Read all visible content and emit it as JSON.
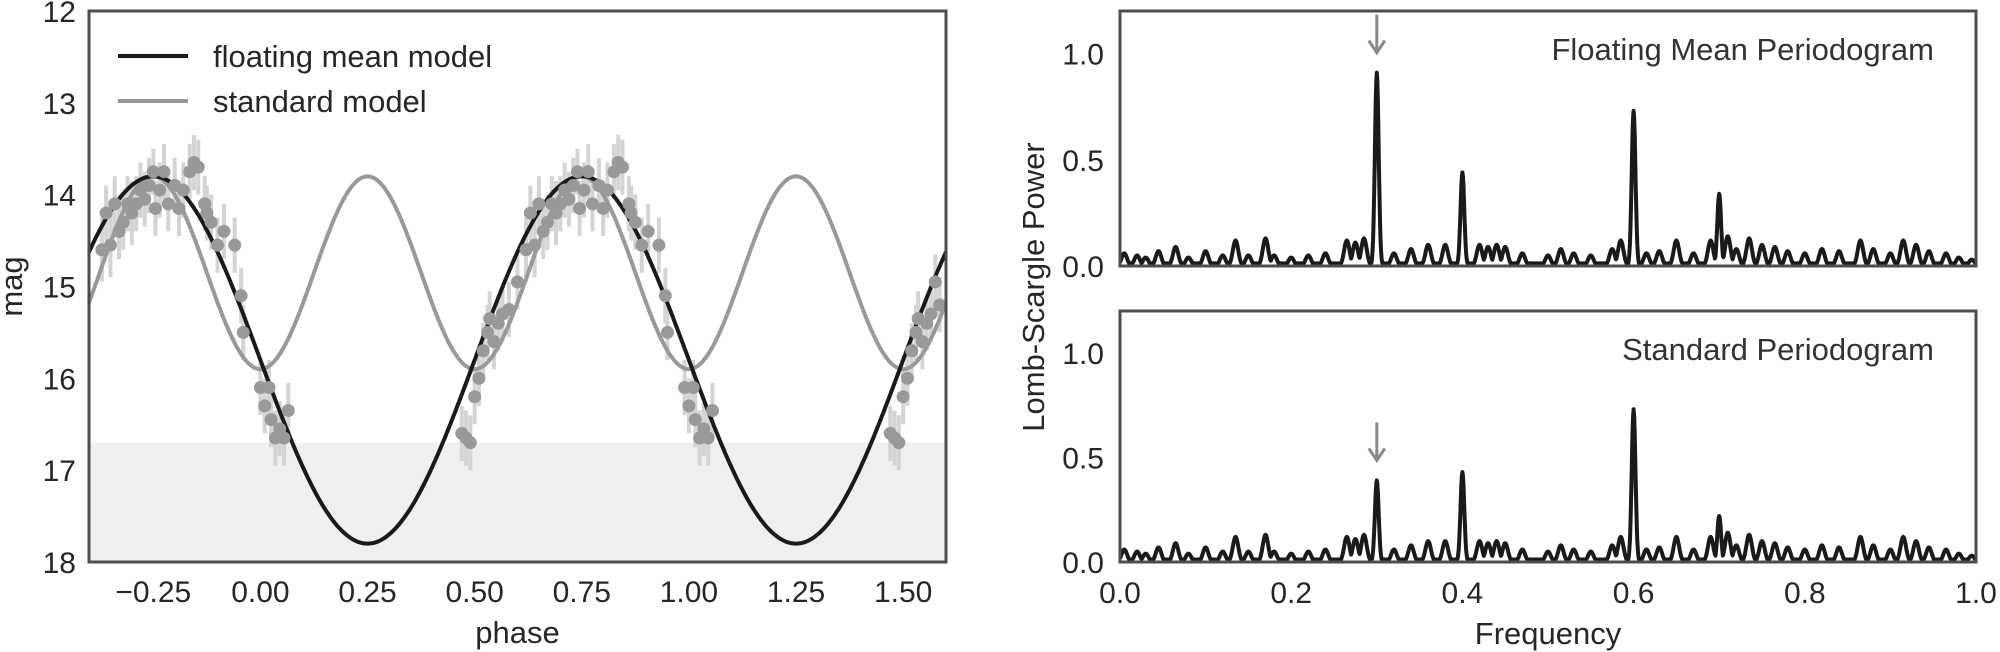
{
  "chart_data": [
    {
      "type": "scatter",
      "xlabel": "phase",
      "ylabel": "mag",
      "xlim": [
        -0.4,
        1.6
      ],
      "ylim": [
        18,
        12
      ],
      "y_inverted": true,
      "xticks": [
        "−0.25",
        "0.00",
        "0.25",
        "0.50",
        "0.75",
        "1.00",
        "1.25",
        "1.50"
      ],
      "xtick_values": [
        -0.25,
        0,
        0.25,
        0.5,
        0.75,
        1.0,
        1.25,
        1.5
      ],
      "yticks": [
        "12",
        "13",
        "14",
        "15",
        "16",
        "17",
        "18"
      ],
      "ytick_values": [
        12,
        13,
        14,
        15,
        16,
        17,
        18
      ],
      "shaded_region": {
        "y_from": 16.7,
        "y_to": 18,
        "color": "#efefef"
      },
      "grid": false,
      "legend_position": "top-left",
      "series": [
        {
          "name": "floating mean model",
          "kind": "sine",
          "center": 15.8,
          "amplitude": 2.0,
          "phase_of_max_brightness": -0.25,
          "color": "#1a1a1a"
        },
        {
          "name": "standard model",
          "kind": "sine",
          "center": 14.85,
          "amplitude": 1.05,
          "period": 0.5,
          "phase_of_max_brightness": -0.25,
          "color": "#999999"
        }
      ],
      "observations": {
        "color": "#999999",
        "errorbar_color": "#d4d4d4",
        "points": [
          [
            -0.37,
            14.6,
            0.35
          ],
          [
            -0.36,
            14.2,
            0.3
          ],
          [
            -0.35,
            14.55,
            0.35
          ],
          [
            -0.34,
            14.1,
            0.3
          ],
          [
            -0.33,
            14.4,
            0.3
          ],
          [
            -0.32,
            14.3,
            0.3
          ],
          [
            -0.31,
            14.1,
            0.3
          ],
          [
            -0.3,
            14.2,
            0.35
          ],
          [
            -0.29,
            14.1,
            0.3
          ],
          [
            -0.28,
            13.95,
            0.3
          ],
          [
            -0.27,
            14.05,
            0.3
          ],
          [
            -0.26,
            13.9,
            0.3
          ],
          [
            -0.25,
            13.75,
            0.25
          ],
          [
            -0.245,
            14.15,
            0.3
          ],
          [
            -0.235,
            13.95,
            0.3
          ],
          [
            -0.225,
            13.75,
            0.3
          ],
          [
            -0.215,
            14.1,
            0.3
          ],
          [
            -0.2,
            13.9,
            0.3
          ],
          [
            -0.19,
            14.15,
            0.3
          ],
          [
            -0.18,
            13.95,
            0.3
          ],
          [
            -0.165,
            13.75,
            0.3
          ],
          [
            -0.155,
            13.65,
            0.3
          ],
          [
            -0.145,
            13.7,
            0.3
          ],
          [
            -0.13,
            14.1,
            0.3
          ],
          [
            -0.125,
            14.2,
            0.3
          ],
          [
            -0.115,
            14.3,
            0.3
          ],
          [
            -0.1,
            14.55,
            0.3
          ],
          [
            -0.085,
            14.4,
            0.3
          ],
          [
            -0.06,
            14.55,
            0.3
          ],
          [
            -0.045,
            15.1,
            0.3
          ],
          [
            -0.04,
            15.5,
            0.3
          ],
          [
            0.0,
            16.1,
            0.3
          ],
          [
            0.01,
            16.3,
            0.3
          ],
          [
            0.02,
            16.1,
            0.3
          ],
          [
            0.025,
            16.45,
            0.3
          ],
          [
            0.035,
            16.65,
            0.3
          ],
          [
            0.045,
            16.55,
            0.3
          ],
          [
            0.055,
            16.65,
            0.3
          ],
          [
            0.065,
            16.35,
            0.3
          ],
          [
            0.47,
            16.6,
            0.3
          ],
          [
            0.48,
            16.65,
            0.3
          ],
          [
            0.49,
            16.7,
            0.3
          ],
          [
            0.5,
            16.2,
            0.3
          ],
          [
            0.51,
            16.0,
            0.3
          ],
          [
            0.52,
            15.7,
            0.3
          ],
          [
            0.53,
            15.5,
            0.3
          ],
          [
            0.535,
            15.35,
            0.3
          ],
          [
            0.545,
            15.6,
            0.3
          ],
          [
            0.555,
            15.4,
            0.3
          ],
          [
            0.565,
            15.3,
            0.3
          ],
          [
            0.58,
            15.25,
            0.3
          ],
          [
            0.6,
            14.95,
            0.3
          ],
          [
            0.62,
            14.6,
            0.35
          ],
          [
            0.63,
            14.2,
            0.3
          ],
          [
            0.64,
            14.55,
            0.35
          ],
          [
            0.65,
            14.1,
            0.3
          ],
          [
            0.66,
            14.4,
            0.3
          ],
          [
            0.67,
            14.3,
            0.3
          ],
          [
            0.68,
            14.1,
            0.3
          ],
          [
            0.69,
            14.2,
            0.35
          ],
          [
            0.7,
            14.1,
            0.3
          ],
          [
            0.71,
            13.95,
            0.3
          ],
          [
            0.72,
            14.05,
            0.3
          ],
          [
            0.73,
            13.9,
            0.3
          ],
          [
            0.74,
            13.75,
            0.25
          ],
          [
            0.745,
            14.15,
            0.3
          ],
          [
            0.755,
            13.95,
            0.3
          ],
          [
            0.765,
            13.75,
            0.3
          ],
          [
            0.775,
            14.1,
            0.3
          ],
          [
            0.79,
            13.9,
            0.3
          ],
          [
            0.8,
            14.15,
            0.3
          ],
          [
            0.81,
            13.95,
            0.3
          ],
          [
            0.825,
            13.75,
            0.3
          ],
          [
            0.835,
            13.65,
            0.3
          ],
          [
            0.845,
            13.7,
            0.3
          ],
          [
            0.86,
            14.1,
            0.3
          ],
          [
            0.865,
            14.2,
            0.3
          ],
          [
            0.875,
            14.3,
            0.3
          ],
          [
            0.89,
            14.55,
            0.3
          ],
          [
            0.905,
            14.4,
            0.3
          ],
          [
            0.93,
            14.55,
            0.3
          ],
          [
            0.945,
            15.1,
            0.3
          ],
          [
            0.95,
            15.5,
            0.3
          ],
          [
            0.99,
            16.1,
            0.3
          ],
          [
            1.0,
            16.3,
            0.3
          ],
          [
            1.01,
            16.1,
            0.3
          ],
          [
            1.015,
            16.45,
            0.3
          ],
          [
            1.025,
            16.65,
            0.3
          ],
          [
            1.035,
            16.55,
            0.3
          ],
          [
            1.045,
            16.65,
            0.3
          ],
          [
            1.055,
            16.35,
            0.3
          ],
          [
            1.47,
            16.6,
            0.3
          ],
          [
            1.48,
            16.65,
            0.3
          ],
          [
            1.49,
            16.7,
            0.3
          ],
          [
            1.5,
            16.2,
            0.3
          ],
          [
            1.51,
            16.0,
            0.3
          ],
          [
            1.52,
            15.7,
            0.3
          ],
          [
            1.53,
            15.5,
            0.3
          ],
          [
            1.535,
            15.35,
            0.3
          ],
          [
            1.545,
            15.6,
            0.3
          ],
          [
            1.555,
            15.4,
            0.3
          ],
          [
            1.565,
            15.3,
            0.3
          ],
          [
            1.575,
            14.95,
            0.3
          ],
          [
            1.585,
            15.2,
            0.3
          ]
        ]
      }
    },
    {
      "type": "line",
      "title": "Floating Mean Periodogram",
      "xlabel": "",
      "ylabel": "Lomb-Scargle Power",
      "xlim": [
        0,
        1
      ],
      "ylim": [
        0,
        1.2
      ],
      "yticks": [
        "0.0",
        "0.5",
        "1.0"
      ],
      "ytick_values": [
        0,
        0.5,
        1.0
      ],
      "show_xtick_labels": false,
      "arrow_at_frequency": 0.3,
      "color": "#1a1a1a",
      "peaks": [
        [
          0.005,
          0.06
        ],
        [
          0.02,
          0.05
        ],
        [
          0.03,
          0.04
        ],
        [
          0.045,
          0.07
        ],
        [
          0.065,
          0.09
        ],
        [
          0.08,
          0.04
        ],
        [
          0.1,
          0.07
        ],
        [
          0.12,
          0.05
        ],
        [
          0.135,
          0.12
        ],
        [
          0.15,
          0.05
        ],
        [
          0.17,
          0.13
        ],
        [
          0.18,
          0.05
        ],
        [
          0.2,
          0.04
        ],
        [
          0.22,
          0.05
        ],
        [
          0.24,
          0.06
        ],
        [
          0.265,
          0.12
        ],
        [
          0.275,
          0.11
        ],
        [
          0.285,
          0.13
        ],
        [
          0.3,
          0.91
        ],
        [
          0.32,
          0.06
        ],
        [
          0.34,
          0.08
        ],
        [
          0.36,
          0.1
        ],
        [
          0.38,
          0.1
        ],
        [
          0.4,
          0.44
        ],
        [
          0.42,
          0.1
        ],
        [
          0.43,
          0.09
        ],
        [
          0.44,
          0.1
        ],
        [
          0.45,
          0.09
        ],
        [
          0.47,
          0.06
        ],
        [
          0.5,
          0.05
        ],
        [
          0.515,
          0.08
        ],
        [
          0.53,
          0.06
        ],
        [
          0.55,
          0.05
        ],
        [
          0.575,
          0.08
        ],
        [
          0.585,
          0.12
        ],
        [
          0.6,
          0.73
        ],
        [
          0.615,
          0.06
        ],
        [
          0.63,
          0.07
        ],
        [
          0.65,
          0.12
        ],
        [
          0.67,
          0.06
        ],
        [
          0.69,
          0.12
        ],
        [
          0.7,
          0.34
        ],
        [
          0.71,
          0.14
        ],
        [
          0.72,
          0.08
        ],
        [
          0.735,
          0.13
        ],
        [
          0.75,
          0.1
        ],
        [
          0.765,
          0.09
        ],
        [
          0.78,
          0.07
        ],
        [
          0.8,
          0.06
        ],
        [
          0.82,
          0.08
        ],
        [
          0.84,
          0.07
        ],
        [
          0.865,
          0.12
        ],
        [
          0.88,
          0.08
        ],
        [
          0.9,
          0.06
        ],
        [
          0.915,
          0.12
        ],
        [
          0.93,
          0.1
        ],
        [
          0.945,
          0.07
        ],
        [
          0.965,
          0.06
        ],
        [
          0.98,
          0.04
        ],
        [
          0.995,
          0.03
        ]
      ]
    },
    {
      "type": "line",
      "title": "Standard Periodogram",
      "xlabel": "Frequency",
      "ylabel": "Lomb-Scargle Power",
      "xlim": [
        0,
        1
      ],
      "ylim": [
        0,
        1.2
      ],
      "xticks": [
        "0.0",
        "0.2",
        "0.4",
        "0.6",
        "0.8",
        "1.0"
      ],
      "xtick_values": [
        0,
        0.2,
        0.4,
        0.6,
        0.8,
        1.0
      ],
      "yticks": [
        "0.0",
        "0.5",
        "1.0"
      ],
      "ytick_values": [
        0,
        0.5,
        1.0
      ],
      "arrow_at_frequency": 0.3,
      "color": "#1a1a1a",
      "peaks": [
        [
          0.005,
          0.06
        ],
        [
          0.02,
          0.05
        ],
        [
          0.03,
          0.04
        ],
        [
          0.045,
          0.07
        ],
        [
          0.065,
          0.09
        ],
        [
          0.08,
          0.04
        ],
        [
          0.1,
          0.07
        ],
        [
          0.12,
          0.05
        ],
        [
          0.135,
          0.12
        ],
        [
          0.15,
          0.05
        ],
        [
          0.17,
          0.13
        ],
        [
          0.18,
          0.05
        ],
        [
          0.2,
          0.04
        ],
        [
          0.22,
          0.05
        ],
        [
          0.24,
          0.06
        ],
        [
          0.265,
          0.12
        ],
        [
          0.275,
          0.11
        ],
        [
          0.285,
          0.13
        ],
        [
          0.3,
          0.39
        ],
        [
          0.32,
          0.06
        ],
        [
          0.34,
          0.08
        ],
        [
          0.36,
          0.1
        ],
        [
          0.38,
          0.1
        ],
        [
          0.4,
          0.43
        ],
        [
          0.42,
          0.1
        ],
        [
          0.43,
          0.09
        ],
        [
          0.44,
          0.1
        ],
        [
          0.45,
          0.09
        ],
        [
          0.47,
          0.06
        ],
        [
          0.5,
          0.05
        ],
        [
          0.515,
          0.08
        ],
        [
          0.53,
          0.06
        ],
        [
          0.55,
          0.05
        ],
        [
          0.575,
          0.08
        ],
        [
          0.585,
          0.12
        ],
        [
          0.6,
          0.73
        ],
        [
          0.615,
          0.06
        ],
        [
          0.63,
          0.07
        ],
        [
          0.65,
          0.12
        ],
        [
          0.67,
          0.06
        ],
        [
          0.69,
          0.12
        ],
        [
          0.7,
          0.22
        ],
        [
          0.71,
          0.14
        ],
        [
          0.72,
          0.08
        ],
        [
          0.735,
          0.13
        ],
        [
          0.75,
          0.1
        ],
        [
          0.765,
          0.09
        ],
        [
          0.78,
          0.07
        ],
        [
          0.8,
          0.06
        ],
        [
          0.82,
          0.08
        ],
        [
          0.84,
          0.07
        ],
        [
          0.865,
          0.12
        ],
        [
          0.88,
          0.08
        ],
        [
          0.9,
          0.06
        ],
        [
          0.915,
          0.12
        ],
        [
          0.93,
          0.1
        ],
        [
          0.945,
          0.07
        ],
        [
          0.965,
          0.06
        ],
        [
          0.98,
          0.04
        ],
        [
          0.995,
          0.03
        ]
      ]
    }
  ]
}
